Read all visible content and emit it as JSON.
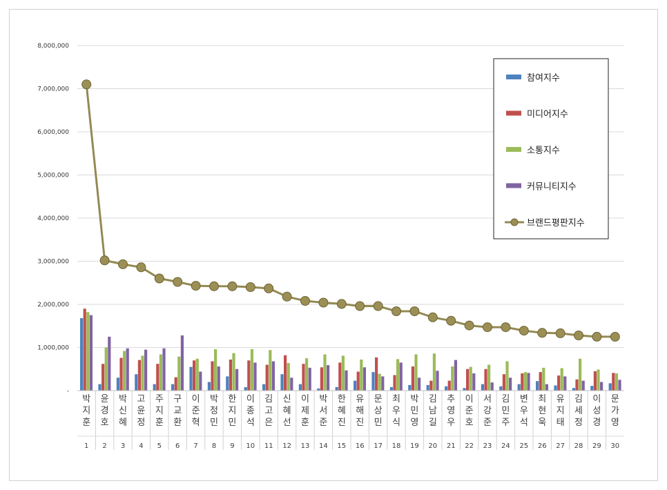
{
  "chart_data": {
    "type": "bar",
    "title": "",
    "xlabel": "",
    "ylabel": "",
    "ylim": [
      0,
      8000000
    ],
    "yticks": [
      "-",
      "1,000,000",
      "2,000,000",
      "3,000,000",
      "4,000,000",
      "5,000,000",
      "6,000,000",
      "7,000,000",
      "8,000,000"
    ],
    "grid": true,
    "legend_position": "right",
    "categories": [
      "박지훈",
      "윤경호",
      "박신혜",
      "고윤정",
      "주지훈",
      "구교환",
      "이준혁",
      "박정민",
      "한지민",
      "이종석",
      "김고은",
      "신혜선",
      "이제훈",
      "박서준",
      "한혜진",
      "유해진",
      "문상민",
      "최우식",
      "박민영",
      "김남길",
      "추영우",
      "이준호",
      "서강준",
      "김민주",
      "변우석",
      "최현욱",
      "유지태",
      "김세정",
      "이성경",
      "문가영"
    ],
    "ranks": [
      "1",
      "2",
      "3",
      "4",
      "5",
      "6",
      "7",
      "8",
      "9",
      "10",
      "11",
      "12",
      "13",
      "14",
      "15",
      "16",
      "17",
      "18",
      "19",
      "20",
      "21",
      "22",
      "23",
      "24",
      "25",
      "26",
      "27",
      "28",
      "29",
      "30"
    ],
    "series": [
      {
        "name": "참여지수",
        "kind": "bar",
        "color": "#4f81bd",
        "values": [
          1680000,
          150000,
          300000,
          380000,
          150000,
          150000,
          550000,
          200000,
          330000,
          80000,
          150000,
          380000,
          150000,
          50000,
          80000,
          230000,
          430000,
          80000,
          130000,
          130000,
          100000,
          60000,
          150000,
          100000,
          150000,
          220000,
          120000,
          60000,
          110000,
          170000
        ]
      },
      {
        "name": "미디어지수",
        "kind": "bar",
        "color": "#c0504d",
        "values": [
          1900000,
          620000,
          760000,
          710000,
          620000,
          310000,
          700000,
          680000,
          720000,
          700000,
          600000,
          820000,
          620000,
          540000,
          650000,
          440000,
          770000,
          360000,
          560000,
          230000,
          230000,
          500000,
          500000,
          380000,
          400000,
          430000,
          350000,
          260000,
          450000,
          410000
        ]
      },
      {
        "name": "소통지수",
        "kind": "bar",
        "color": "#9bbb59",
        "values": [
          1820000,
          1000000,
          920000,
          810000,
          840000,
          790000,
          740000,
          960000,
          870000,
          960000,
          940000,
          640000,
          750000,
          840000,
          810000,
          720000,
          390000,
          730000,
          840000,
          860000,
          560000,
          550000,
          600000,
          680000,
          430000,
          530000,
          520000,
          740000,
          490000,
          400000
        ]
      },
      {
        "name": "커뮤니티지수",
        "kind": "bar",
        "color": "#8064a2",
        "values": [
          1750000,
          1250000,
          980000,
          950000,
          980000,
          1280000,
          440000,
          560000,
          500000,
          650000,
          680000,
          300000,
          530000,
          590000,
          470000,
          540000,
          330000,
          650000,
          300000,
          460000,
          710000,
          400000,
          190000,
          300000,
          410000,
          150000,
          330000,
          230000,
          200000,
          250000
        ]
      },
      {
        "name": "브랜드평판지수",
        "kind": "line",
        "color": "#938953",
        "values": [
          7100000,
          3020000,
          2930000,
          2860000,
          2600000,
          2520000,
          2430000,
          2420000,
          2420000,
          2400000,
          2370000,
          2180000,
          2080000,
          2040000,
          2010000,
          1960000,
          1960000,
          1840000,
          1840000,
          1700000,
          1620000,
          1510000,
          1470000,
          1470000,
          1390000,
          1340000,
          1330000,
          1280000,
          1250000,
          1250000
        ]
      }
    ]
  }
}
